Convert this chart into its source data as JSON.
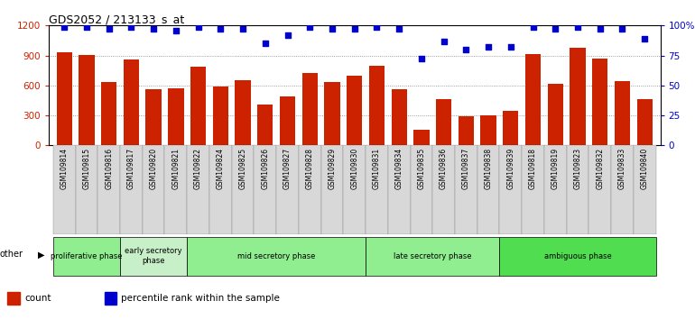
{
  "title": "GDS2052 / 213133_s_at",
  "samples": [
    "GSM109814",
    "GSM109815",
    "GSM109816",
    "GSM109817",
    "GSM109820",
    "GSM109821",
    "GSM109822",
    "GSM109824",
    "GSM109825",
    "GSM109826",
    "GSM109827",
    "GSM109828",
    "GSM109829",
    "GSM109830",
    "GSM109831",
    "GSM109834",
    "GSM109835",
    "GSM109836",
    "GSM109837",
    "GSM109838",
    "GSM109839",
    "GSM109818",
    "GSM109819",
    "GSM109823",
    "GSM109832",
    "GSM109833",
    "GSM109840"
  ],
  "counts": [
    930,
    905,
    635,
    855,
    560,
    570,
    790,
    590,
    650,
    410,
    490,
    720,
    630,
    700,
    800,
    560,
    150,
    460,
    290,
    295,
    340,
    915,
    615,
    980,
    870,
    640,
    460
  ],
  "percentiles": [
    99,
    99,
    97,
    99,
    97,
    96,
    99,
    97,
    97,
    85,
    92,
    99,
    97,
    97,
    99,
    97,
    72,
    87,
    80,
    82,
    82,
    99,
    97,
    99,
    97,
    97,
    89
  ],
  "phases": [
    {
      "label": "proliferative phase",
      "start": 0,
      "end": 3,
      "color": "#90ee90"
    },
    {
      "label": "early secretory\nphase",
      "start": 3,
      "end": 6,
      "color": "#c8f0c8"
    },
    {
      "label": "mid secretory phase",
      "start": 6,
      "end": 14,
      "color": "#90ee90"
    },
    {
      "label": "late secretory phase",
      "start": 14,
      "end": 20,
      "color": "#90ee90"
    },
    {
      "label": "ambiguous phase",
      "start": 20,
      "end": 27,
      "color": "#50dd50"
    }
  ],
  "bar_color": "#cc2200",
  "dot_color": "#0000cc",
  "ylim_left": [
    0,
    1200
  ],
  "ylim_right": [
    0,
    100
  ],
  "yticks_left": [
    0,
    300,
    600,
    900,
    1200
  ],
  "ytick_labels_left": [
    "0",
    "300",
    "600",
    "900",
    "1200"
  ],
  "yticks_right": [
    0,
    25,
    50,
    75,
    100
  ],
  "ytick_labels_right": [
    "0",
    "25",
    "50",
    "75",
    "100%"
  ]
}
